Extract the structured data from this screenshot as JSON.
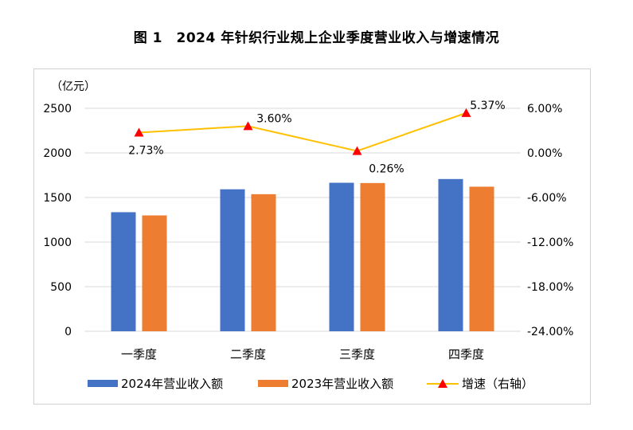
{
  "title": "图 1　2024 年针织行业规上企业季度营业收入与增速情况",
  "chart_data": {
    "type": "bar",
    "categories": [
      "一季度",
      "二季度",
      "三季度",
      "四季度"
    ],
    "ylabel": "（亿元）",
    "ylim": [
      0,
      2500
    ],
    "y_ticks": [
      "0",
      "500",
      "1000",
      "1500",
      "2000",
      "2500"
    ],
    "y2lim": [
      -24,
      6
    ],
    "y2_ticks": [
      "-24.00%",
      "-18.00%",
      "-12.00%",
      "-6.00%",
      "0.00%",
      "6.00%"
    ],
    "series": [
      {
        "name": "2024年营业收入额",
        "values": [
          1335,
          1592,
          1665,
          1707
        ],
        "color": "#4472c4",
        "axis": "left"
      },
      {
        "name": "2023年营业收入额",
        "values": [
          1299,
          1537,
          1662,
          1621
        ],
        "color": "#ed7d31",
        "axis": "left"
      }
    ],
    "line_series": {
      "name": "增速（右轴）",
      "values": [
        2.73,
        3.6,
        0.26,
        5.37
      ],
      "labels": [
        "2.73%",
        "3.60%",
        "0.26%",
        "5.37%"
      ],
      "line_color": "#ffc000",
      "marker_color": "#ff0000",
      "marker": "triangle",
      "axis": "right"
    },
    "grid": true,
    "legend": "bottom"
  }
}
